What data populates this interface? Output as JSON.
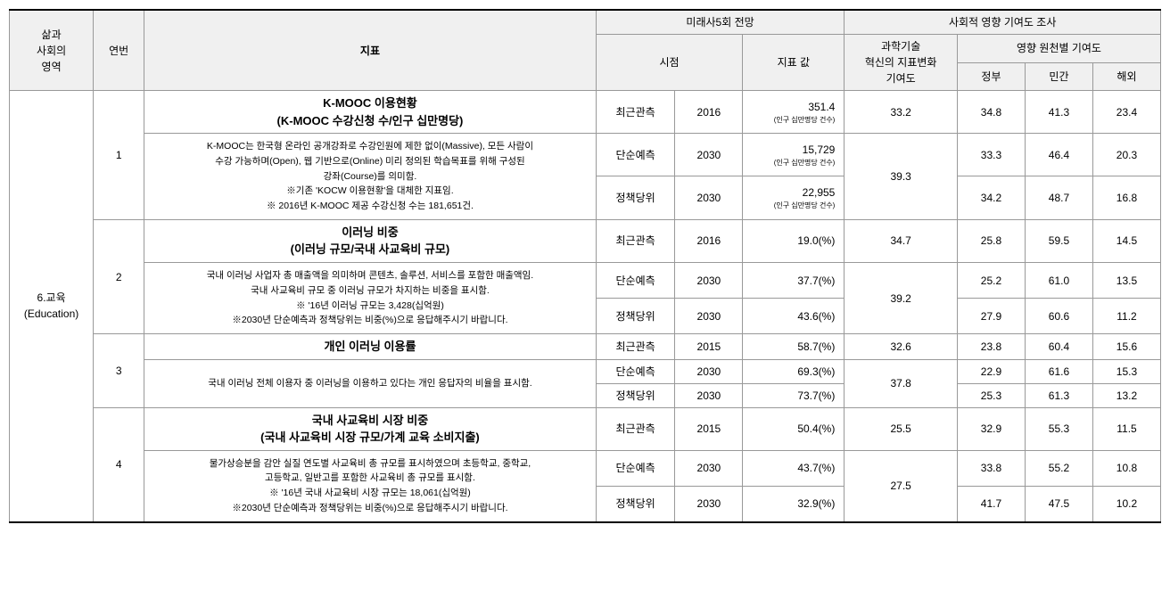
{
  "headers": {
    "area": "삶과\n사회의\n영역",
    "num": "연번",
    "indicator": "지표",
    "forecast": "미래사5회 전망",
    "time": "시점",
    "value": "지표 값",
    "social": "사회적 영향 기여도 조사",
    "tech": "과학기술\n혁신의 지표변화\n기여도",
    "source": "영향 원천별 기여도",
    "gov": "정부",
    "priv": "민간",
    "over": "해외"
  },
  "area": "6.교육\n(Education)",
  "rows": [
    {
      "num": "1",
      "title": "K-MOOC 이용현황",
      "sub": "(K-MOOC 수강신청 수/인구 십만명당)",
      "desc": "K-MOOC는 한국형 온라인 공개강좌로 수강인원에 제한 없이(Massive), 모든 사람이\n수강 가능하며(Open), 웹 기반으로(Online) 미리 정의된 학습목표를 위해 구성된\n강좌(Course)를 의미함.\n※기존 'KOCW 이용현황'을 대체한 지표임.\n※ 2016년 K-MOOC 제공 수강신청 수는 181,651건.",
      "r": [
        {
          "t": "최근관측",
          "y": "2016",
          "v": "351.4",
          "vs": "(인구 십만명당 건수)",
          "tech": "33.2",
          "g": "34.8",
          "p": "41.3",
          "o": "23.4"
        },
        {
          "t": "단순예측",
          "y": "2030",
          "v": "15,729",
          "vs": "(인구 십만명당 건수)",
          "tech": "39.3",
          "g": "33.3",
          "p": "46.4",
          "o": "20.3"
        },
        {
          "t": "정책당위",
          "y": "2030",
          "v": "22,955",
          "vs": "(인구 십만명당 건수)",
          "g": "34.2",
          "p": "48.7",
          "o": "16.8"
        }
      ]
    },
    {
      "num": "2",
      "title": "이러닝 비중",
      "sub": "(이러닝 규모/국내 사교육비 규모)",
      "desc": "국내 이러닝 사업자 총 매출액을 의미하며 콘텐츠, 솔루션, 서비스를 포함한 매출액임.\n국내 사교육비 규모 중 이러닝 규모가 차지하는 비중을 표시함.\n※ '16년 이러닝 규모는 3,428(십억원)\n※2030년 단순예측과 정책당위는 비중(%)으로 응답해주시기 바랍니다.",
      "r": [
        {
          "t": "최근관측",
          "y": "2016",
          "v": "19.0(%)",
          "tech": "34.7",
          "g": "25.8",
          "p": "59.5",
          "o": "14.5"
        },
        {
          "t": "단순예측",
          "y": "2030",
          "v": "37.7(%)",
          "tech": "39.2",
          "g": "25.2",
          "p": "61.0",
          "o": "13.5"
        },
        {
          "t": "정책당위",
          "y": "2030",
          "v": "43.6(%)",
          "g": "27.9",
          "p": "60.6",
          "o": "11.2"
        }
      ]
    },
    {
      "num": "3",
      "title": "개인 이러닝 이용률",
      "sub": "",
      "desc": "국내 이러닝 전체 이용자 중 이러닝을 이용하고 있다는 개인 응답자의 비율을 표시함.",
      "r": [
        {
          "t": "최근관측",
          "y": "2015",
          "v": "58.7(%)",
          "tech": "32.6",
          "g": "23.8",
          "p": "60.4",
          "o": "15.6"
        },
        {
          "t": "단순예측",
          "y": "2030",
          "v": "69.3(%)",
          "tech": "37.8",
          "g": "22.9",
          "p": "61.6",
          "o": "15.3"
        },
        {
          "t": "정책당위",
          "y": "2030",
          "v": "73.7(%)",
          "g": "25.3",
          "p": "61.3",
          "o": "13.2"
        }
      ]
    },
    {
      "num": "4",
      "title": "국내 사교육비 시장 비중",
      "sub": "(국내 사교육비 시장 규모/가계 교육 소비지출)",
      "desc": "물가상승분을 감안 실질 연도별 사교육비 총 규모를 표시하였으며 초등학교, 중학교,\n고등학교, 일반고를 포함한 사교육비 총 규모를 표시함.\n※ '16년 국내 사교육비 시장 규모는 18,061(십억원)\n※2030년 단순예측과 정책당위는 비중(%)으로 응답해주시기 바랍니다.",
      "r": [
        {
          "t": "최근관측",
          "y": "2015",
          "v": "50.4(%)",
          "tech": "25.5",
          "g": "32.9",
          "p": "55.3",
          "o": "11.5"
        },
        {
          "t": "단순예측",
          "y": "2030",
          "v": "43.7(%)",
          "tech": "27.5",
          "g": "33.8",
          "p": "55.2",
          "o": "10.8"
        },
        {
          "t": "정책당위",
          "y": "2030",
          "v": "32.9(%)",
          "g": "41.7",
          "p": "47.5",
          "o": "10.2"
        }
      ]
    }
  ]
}
